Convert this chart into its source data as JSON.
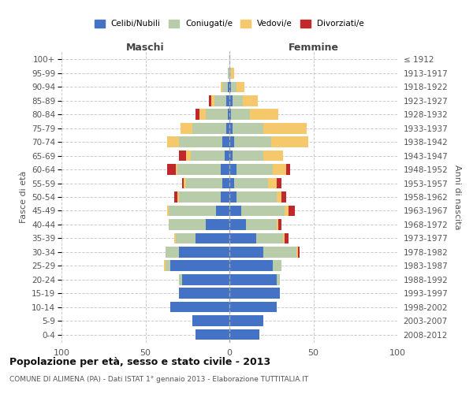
{
  "age_groups": [
    "0-4",
    "5-9",
    "10-14",
    "15-19",
    "20-24",
    "25-29",
    "30-34",
    "35-39",
    "40-44",
    "45-49",
    "50-54",
    "55-59",
    "60-64",
    "65-69",
    "70-74",
    "75-79",
    "80-84",
    "85-89",
    "90-94",
    "95-99",
    "100+"
  ],
  "birth_years": [
    "2008-2012",
    "2003-2007",
    "1998-2002",
    "1993-1997",
    "1988-1992",
    "1983-1987",
    "1978-1982",
    "1973-1977",
    "1968-1972",
    "1963-1967",
    "1958-1962",
    "1953-1957",
    "1948-1952",
    "1943-1947",
    "1938-1942",
    "1933-1937",
    "1928-1932",
    "1923-1927",
    "1918-1922",
    "1913-1917",
    "≤ 1912"
  ],
  "maschi": {
    "celibi": [
      20,
      22,
      35,
      30,
      28,
      35,
      30,
      20,
      14,
      8,
      5,
      4,
      5,
      3,
      4,
      2,
      1,
      2,
      1,
      0,
      0
    ],
    "coniugati": [
      0,
      0,
      0,
      0,
      2,
      3,
      8,
      12,
      22,
      28,
      25,
      22,
      26,
      20,
      26,
      20,
      13,
      7,
      3,
      1,
      0
    ],
    "vedovi": [
      0,
      0,
      0,
      0,
      0,
      1,
      0,
      1,
      0,
      1,
      1,
      1,
      1,
      3,
      7,
      7,
      4,
      2,
      1,
      0,
      0
    ],
    "divorziati": [
      0,
      0,
      0,
      0,
      0,
      0,
      0,
      0,
      0,
      0,
      2,
      1,
      5,
      4,
      0,
      0,
      2,
      1,
      0,
      0,
      0
    ]
  },
  "femmine": {
    "nubili": [
      18,
      20,
      28,
      30,
      28,
      26,
      20,
      16,
      10,
      7,
      4,
      3,
      4,
      2,
      3,
      2,
      1,
      2,
      1,
      0,
      0
    ],
    "coniugate": [
      0,
      0,
      0,
      0,
      2,
      5,
      20,
      16,
      18,
      26,
      24,
      20,
      22,
      18,
      22,
      18,
      11,
      6,
      3,
      1,
      0
    ],
    "vedove": [
      0,
      0,
      0,
      0,
      0,
      0,
      1,
      1,
      1,
      2,
      3,
      5,
      8,
      12,
      22,
      26,
      17,
      9,
      5,
      2,
      0
    ],
    "divorziate": [
      0,
      0,
      0,
      0,
      0,
      0,
      1,
      2,
      2,
      4,
      3,
      3,
      2,
      0,
      0,
      0,
      0,
      0,
      0,
      0,
      0
    ]
  },
  "colors": {
    "celibi_nubili": "#4472C4",
    "coniugati": "#B8CCAA",
    "vedovi": "#F5C96B",
    "divorziati": "#C0282C"
  },
  "xlim": 100,
  "title": "Popolazione per età, sesso e stato civile - 2013",
  "subtitle": "COMUNE DI ALIMENA (PA) - Dati ISTAT 1° gennaio 2013 - Elaborazione TUTTITALIA.IT",
  "ylabel_left": "Fasce di età",
  "ylabel_right": "Anni di nascita",
  "xlabel_left": "Maschi",
  "xlabel_right": "Femmine"
}
